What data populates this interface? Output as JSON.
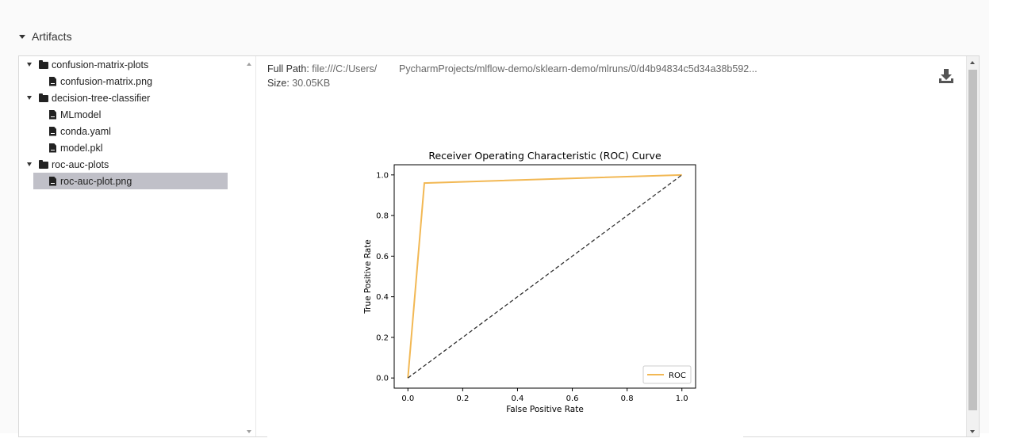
{
  "section": {
    "title": "Artifacts"
  },
  "tree": [
    {
      "type": "folder",
      "label": "confusion-matrix-plots",
      "expanded": true,
      "depth": 0
    },
    {
      "type": "file",
      "label": "confusion-matrix.png",
      "depth": 1
    },
    {
      "type": "folder",
      "label": "decision-tree-classifier",
      "expanded": true,
      "depth": 0
    },
    {
      "type": "file",
      "label": "MLmodel",
      "depth": 1
    },
    {
      "type": "file",
      "label": "conda.yaml",
      "depth": 1
    },
    {
      "type": "file",
      "label": "model.pkl",
      "depth": 1
    },
    {
      "type": "folder",
      "label": "roc-auc-plots",
      "expanded": true,
      "depth": 0
    },
    {
      "type": "file",
      "label": "roc-auc-plot.png",
      "depth": 1,
      "selected": true
    }
  ],
  "preview": {
    "full_path_label": "Full Path:",
    "full_path_value": "file:///C:/Users/        PycharmProjects/mlflow-demo/sklearn-demo/mlruns/0/d4b94834c5d34a38b592...",
    "size_label": "Size:",
    "size_value": "30.05KB",
    "download_icon": "download-icon"
  },
  "colors": {
    "selected_row": "#c0c0c8",
    "roc_line": "#f2b854",
    "diagonal": "#333333"
  },
  "chart_data": {
    "type": "line",
    "title": "Receiver Operating Characteristic (ROC) Curve",
    "xlabel": "False Positive Rate",
    "ylabel": "True Positive Rate",
    "xlim": [
      -0.05,
      1.05
    ],
    "ylim": [
      -0.05,
      1.05
    ],
    "xticks": [
      "0.0",
      "0.2",
      "0.4",
      "0.6",
      "0.8",
      "1.0"
    ],
    "yticks": [
      "0.0",
      "0.2",
      "0.4",
      "0.6",
      "0.8",
      "1.0"
    ],
    "grid": false,
    "legend_position": "lower-right",
    "series": [
      {
        "name": "ROC",
        "color": "#f2b854",
        "style": "solid",
        "x": [
          0.0,
          0.06,
          1.0
        ],
        "y": [
          0.0,
          0.96,
          1.0
        ]
      },
      {
        "name": "",
        "color": "#333333",
        "style": "dashed",
        "x": [
          0.0,
          1.0
        ],
        "y": [
          0.0,
          1.0
        ]
      }
    ]
  }
}
